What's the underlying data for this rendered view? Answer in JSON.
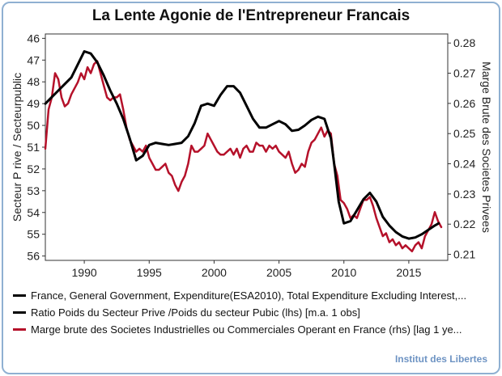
{
  "title": "La Lente Agonie de l'Entrepreneur Francais",
  "credit": "Institut des Libertes",
  "colors": {
    "frame": "#8fb0d2",
    "ratio": "#000000",
    "margin": "#b5112a",
    "credit": "#6d93c3"
  },
  "legend": [
    {
      "label": "France, General Government, Expenditure(ESA2010), Total Expenditure Excluding Interest,...",
      "color": "#000000"
    },
    {
      "label": "Ratio  Poids du Secteur Prive /Poids du secteur Pubic (lhs) [m.a. 1 obs]",
      "color": "#000000"
    },
    {
      "label": "Marge brute des Societes Industrielles ou Commerciales Operant en France (rhs) [lag 1 ye...",
      "color": "#b5112a"
    }
  ],
  "chart_data": {
    "type": "line",
    "title": "La Lente Agonie de l'Entrepreneur Francais",
    "x_ticks": [
      1990,
      1995,
      2000,
      2005,
      2010,
      2015
    ],
    "xlim": [
      1987,
      2018
    ],
    "ylabel_left": "Secteur P rive / Secteurpublic",
    "ylabel_right": "Marge Brute des Societes Privees",
    "ylim_left": [
      56.2,
      45.8
    ],
    "left_inverted": true,
    "left_ticks": [
      46,
      47,
      48,
      49,
      50,
      51,
      52,
      53,
      54,
      55,
      56
    ],
    "ylim_right": [
      0.208,
      0.283
    ],
    "right_ticks": [
      0.21,
      0.22,
      0.23,
      0.24,
      0.25,
      0.26,
      0.27,
      0.28
    ],
    "grid": false,
    "series": [
      {
        "name": "Ratio  Poids du Secteur Prive /Poids du secteur Pubic (lhs) [m.a. 1 obs]",
        "axis": "left",
        "color": "#000000",
        "x": [
          1987.0,
          1987.5,
          1988.0,
          1988.5,
          1989.0,
          1989.5,
          1990.0,
          1990.5,
          1991.0,
          1991.5,
          1992.0,
          1992.5,
          1993.0,
          1993.5,
          1994.0,
          1994.5,
          1995.0,
          1995.5,
          1996.0,
          1996.5,
          1997.0,
          1997.5,
          1998.0,
          1998.5,
          1999.0,
          1999.5,
          2000.0,
          2000.5,
          2001.0,
          2001.5,
          2002.0,
          2002.5,
          2003.0,
          2003.5,
          2004.0,
          2004.5,
          2005.0,
          2005.5,
          2006.0,
          2006.5,
          2007.0,
          2007.5,
          2008.0,
          2008.5,
          2009.0,
          2009.3,
          2009.6,
          2010.0,
          2010.5,
          2011.0,
          2011.5,
          2012.0,
          2012.5,
          2013.0,
          2013.5,
          2014.0,
          2014.5,
          2015.0,
          2015.5,
          2016.0,
          2016.5,
          2017.0,
          2017.3
        ],
        "y": [
          49.0,
          48.7,
          48.4,
          48.1,
          47.8,
          47.2,
          46.6,
          46.7,
          47.1,
          47.7,
          48.4,
          49.0,
          49.7,
          50.6,
          51.6,
          51.4,
          50.9,
          50.8,
          50.85,
          50.9,
          50.85,
          50.8,
          50.5,
          49.9,
          49.1,
          49.0,
          49.1,
          48.6,
          48.2,
          48.2,
          48.5,
          49.1,
          49.7,
          50.1,
          50.1,
          49.95,
          49.8,
          49.95,
          50.25,
          50.2,
          50.0,
          49.75,
          49.6,
          49.7,
          50.6,
          52.0,
          53.5,
          54.5,
          54.4,
          53.9,
          53.4,
          53.1,
          53.5,
          54.2,
          54.6,
          54.9,
          55.1,
          55.2,
          55.15,
          55.0,
          54.8,
          54.6,
          54.5
        ]
      },
      {
        "name": "Marge brute des Societes Industrielles ou Commerciales Operant en France (rhs) [lag 1 ye...",
        "axis": "right",
        "color": "#b5112a",
        "x": [
          1987.0,
          1987.25,
          1987.5,
          1987.75,
          1988.0,
          1988.25,
          1988.5,
          1988.75,
          1989.0,
          1989.25,
          1989.5,
          1989.75,
          1990.0,
          1990.25,
          1990.5,
          1990.75,
          1991.0,
          1991.25,
          1991.5,
          1991.75,
          1992.0,
          1992.25,
          1992.5,
          1992.75,
          1993.0,
          1993.25,
          1993.5,
          1993.75,
          1994.0,
          1994.25,
          1994.5,
          1994.75,
          1995.0,
          1995.25,
          1995.5,
          1995.75,
          1996.0,
          1996.25,
          1996.5,
          1996.75,
          1997.0,
          1997.25,
          1997.5,
          1997.75,
          1998.0,
          1998.25,
          1998.5,
          1998.75,
          1999.0,
          1999.25,
          1999.5,
          1999.75,
          2000.0,
          2000.25,
          2000.5,
          2000.75,
          2001.0,
          2001.25,
          2001.5,
          2001.75,
          2002.0,
          2002.25,
          2002.5,
          2002.75,
          2003.0,
          2003.25,
          2003.5,
          2003.75,
          2004.0,
          2004.25,
          2004.5,
          2004.75,
          2005.0,
          2005.25,
          2005.5,
          2005.75,
          2006.0,
          2006.25,
          2006.5,
          2006.75,
          2007.0,
          2007.25,
          2007.5,
          2007.75,
          2008.0,
          2008.25,
          2008.5,
          2008.75,
          2009.0,
          2009.25,
          2009.5,
          2009.75,
          2010.0,
          2010.25,
          2010.5,
          2010.75,
          2011.0,
          2011.25,
          2011.5,
          2011.75,
          2012.0,
          2012.25,
          2012.5,
          2012.75,
          2013.0,
          2013.25,
          2013.5,
          2013.75,
          2014.0,
          2014.25,
          2014.5,
          2014.75,
          2015.0,
          2015.25,
          2015.5,
          2015.75,
          2016.0,
          2016.25,
          2016.5,
          2016.75,
          2017.0,
          2017.25,
          2017.5
        ],
        "y": [
          0.245,
          0.258,
          0.262,
          0.27,
          0.268,
          0.262,
          0.259,
          0.26,
          0.263,
          0.265,
          0.267,
          0.27,
          0.268,
          0.272,
          0.27,
          0.273,
          0.274,
          0.27,
          0.266,
          0.262,
          0.261,
          0.262,
          0.262,
          0.263,
          0.258,
          0.252,
          0.248,
          0.246,
          0.244,
          0.245,
          0.244,
          0.246,
          0.242,
          0.24,
          0.238,
          0.238,
          0.239,
          0.24,
          0.237,
          0.236,
          0.233,
          0.231,
          0.234,
          0.236,
          0.24,
          0.246,
          0.244,
          0.244,
          0.245,
          0.246,
          0.25,
          0.248,
          0.246,
          0.244,
          0.243,
          0.243,
          0.244,
          0.245,
          0.243,
          0.245,
          0.242,
          0.245,
          0.246,
          0.244,
          0.244,
          0.247,
          0.246,
          0.246,
          0.244,
          0.246,
          0.245,
          0.246,
          0.244,
          0.243,
          0.242,
          0.244,
          0.24,
          0.237,
          0.238,
          0.24,
          0.239,
          0.244,
          0.247,
          0.248,
          0.25,
          0.252,
          0.249,
          0.251,
          0.25,
          0.24,
          0.236,
          0.228,
          0.227,
          0.225,
          0.222,
          0.223,
          0.222,
          0.225,
          0.228,
          0.228,
          0.229,
          0.226,
          0.222,
          0.219,
          0.216,
          0.217,
          0.214,
          0.215,
          0.213,
          0.214,
          0.212,
          0.213,
          0.212,
          0.211,
          0.213,
          0.214,
          0.212,
          0.216,
          0.218,
          0.22,
          0.224,
          0.221,
          0.219
        ]
      }
    ]
  }
}
